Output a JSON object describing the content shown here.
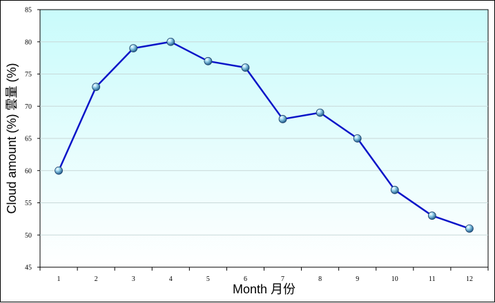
{
  "chart_data": {
    "type": "line",
    "xlabel": "Month 月份",
    "ylabel": "Cloud amount (%) 雲量 (%)",
    "categories": [
      "1",
      "2",
      "3",
      "4",
      "5",
      "6",
      "7",
      "8",
      "9",
      "10",
      "11",
      "12"
    ],
    "values": [
      60,
      73,
      79,
      80,
      77,
      76,
      68,
      69,
      65,
      57,
      53,
      51
    ],
    "ylim": [
      45,
      85
    ],
    "yticks": [
      45,
      50,
      55,
      60,
      65,
      70,
      75,
      80,
      85
    ],
    "grid": true,
    "legend": "none",
    "colors": {
      "line": "#0a14c8",
      "plot_bg_top": "#c9fbfb",
      "plot_bg_bottom": "#ffffff",
      "marker": "#4aa8d8",
      "grid": "#c8d8d8"
    }
  }
}
